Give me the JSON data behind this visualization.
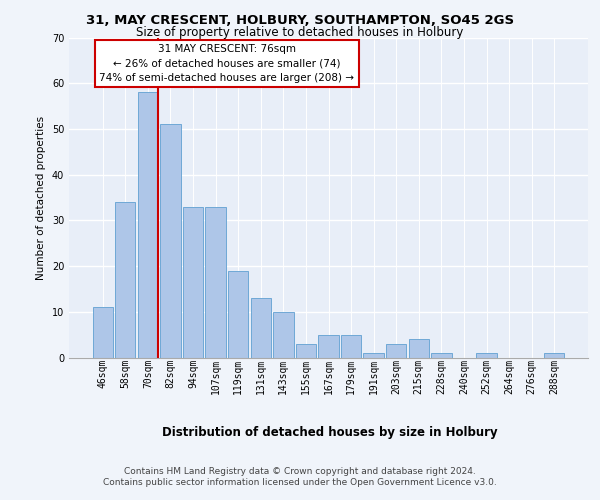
{
  "title1": "31, MAY CRESCENT, HOLBURY, SOUTHAMPTON, SO45 2GS",
  "title2": "Size of property relative to detached houses in Holbury",
  "xlabel": "Distribution of detached houses by size in Holbury",
  "ylabel": "Number of detached properties",
  "categories": [
    "46sqm",
    "58sqm",
    "70sqm",
    "82sqm",
    "94sqm",
    "107sqm",
    "119sqm",
    "131sqm",
    "143sqm",
    "155sqm",
    "167sqm",
    "179sqm",
    "191sqm",
    "203sqm",
    "215sqm",
    "228sqm",
    "240sqm",
    "252sqm",
    "264sqm",
    "276sqm",
    "288sqm"
  ],
  "values": [
    11,
    34,
    58,
    51,
    33,
    33,
    19,
    13,
    10,
    3,
    5,
    5,
    1,
    3,
    4,
    1,
    0,
    1,
    0,
    0,
    1
  ],
  "bar_color": "#aec6e8",
  "bar_edge_color": "#6fa8d6",
  "bg_color": "#e8eef8",
  "grid_color": "#ffffff",
  "annotation_text": "31 MAY CRESCENT: 76sqm\n← 26% of detached houses are smaller (74)\n74% of semi-detached houses are larger (208) →",
  "annotation_box_facecolor": "#ffffff",
  "annotation_box_edgecolor": "#cc0000",
  "red_line_color": "#cc0000",
  "ylim": [
    0,
    70
  ],
  "yticks": [
    0,
    10,
    20,
    30,
    40,
    50,
    60,
    70
  ],
  "footnote1": "Contains HM Land Registry data © Crown copyright and database right 2024.",
  "footnote2": "Contains public sector information licensed under the Open Government Licence v3.0.",
  "title1_fontsize": 9.5,
  "title2_fontsize": 8.5,
  "xlabel_fontsize": 8.5,
  "ylabel_fontsize": 7.5,
  "annot_fontsize": 7.5,
  "tick_fontsize": 7,
  "footnote_fontsize": 6.5
}
